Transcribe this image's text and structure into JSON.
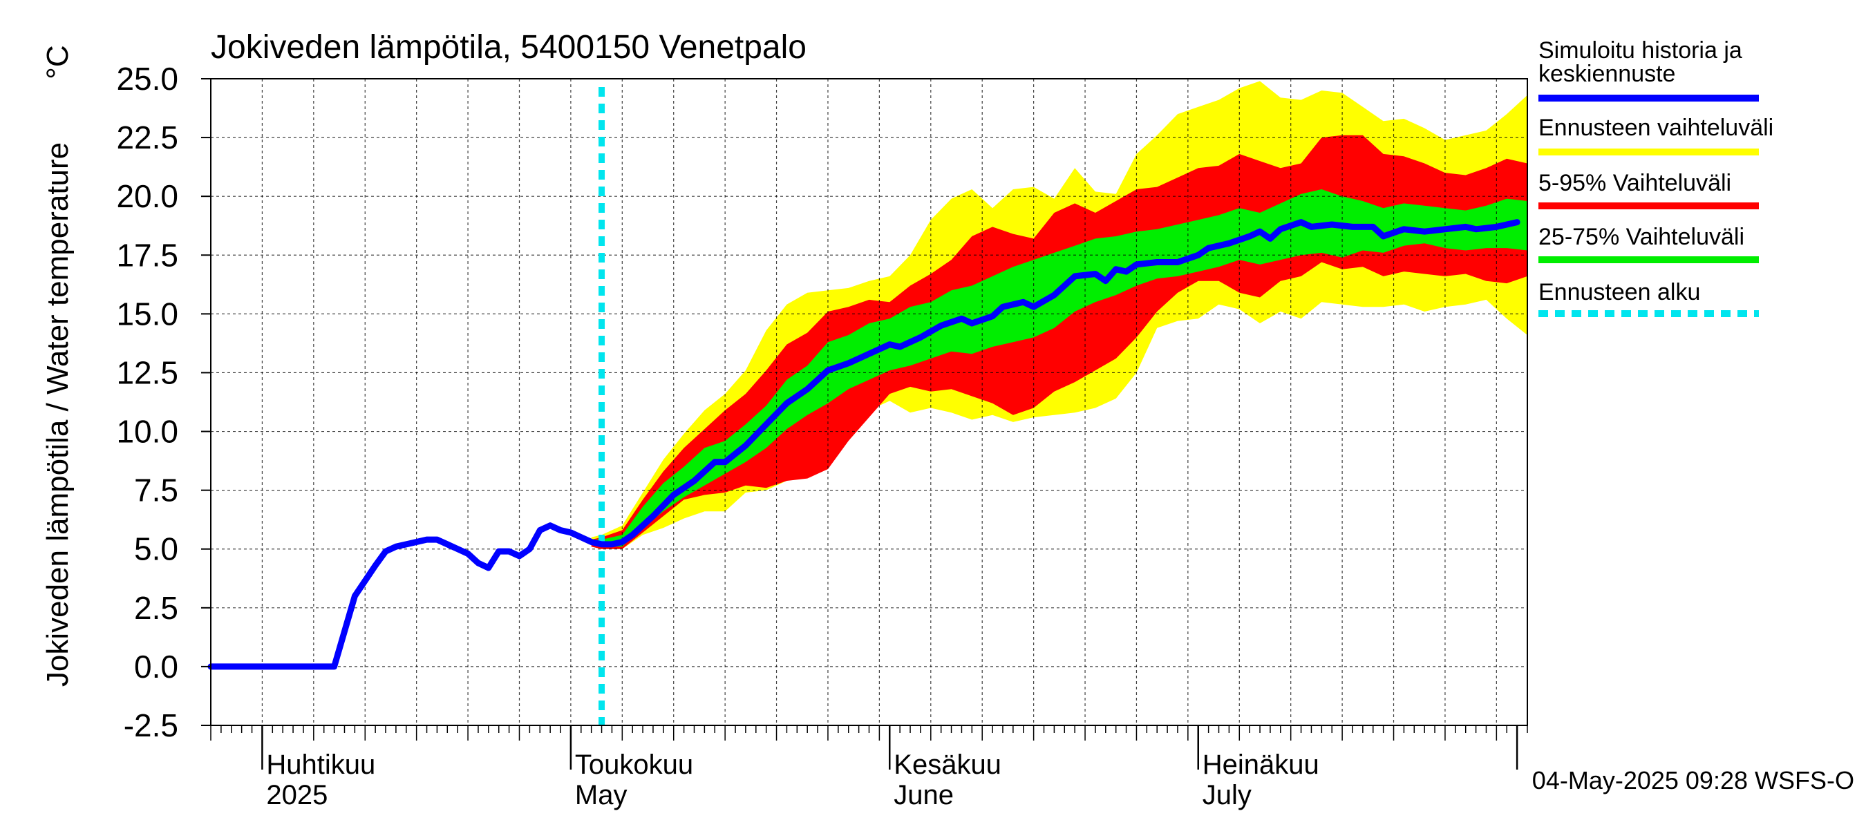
{
  "chart_data": {
    "type": "area",
    "title": "Jokiveden lämpötila, 5400150 Venetpalo",
    "ylabel": "Jokiveden lämpötila / Water temperature",
    "yunit": "°C",
    "ylim": [
      -2.5,
      25.0
    ],
    "yticks": [
      "25.0",
      "22.5",
      "20.0",
      "17.5",
      "15.0",
      "12.5",
      "10.0",
      "7.5",
      "5.0",
      "2.5",
      "0.0",
      "-2.5"
    ],
    "xlim": [
      "2025-03-27",
      "2025-08-02"
    ],
    "month_labels": [
      {
        "date": "2025-04-01",
        "fi": "Huhtikuu",
        "en": "2025"
      },
      {
        "date": "2025-05-01",
        "fi": "Toukokuu",
        "en": "May"
      },
      {
        "date": "2025-06-01",
        "fi": "Kesäkuu",
        "en": "June"
      },
      {
        "date": "2025-07-01",
        "fi": "Heinäkuu",
        "en": "July"
      }
    ],
    "forecast_start": "2025-05-04",
    "grid": true,
    "legend_position": "right",
    "legend": [
      {
        "label": "Simuloitu historia ja keskiennuste",
        "color": "#0000ff"
      },
      {
        "label": "Ennusteen vaihteluväli",
        "color": "#ffff00"
      },
      {
        "label": "5-95% Vaihteluväli",
        "color": "#ff0000"
      },
      {
        "label": "25-75% Vaihteluväli",
        "color": "#00ee00"
      },
      {
        "label": "Ennusteen alku",
        "color": "#00e5ee"
      }
    ],
    "timestamp": "04-May-2025 09:28 WSFS-O",
    "series": [
      {
        "name": "Simuloitu historia ja keskiennuste",
        "color": "#0000ff",
        "points": [
          [
            "2025-03-27",
            0.0
          ],
          [
            "2025-04-08",
            0.0
          ],
          [
            "2025-04-10",
            3.0
          ],
          [
            "2025-04-12",
            4.3
          ],
          [
            "2025-04-13",
            4.9
          ],
          [
            "2025-04-14",
            5.1
          ],
          [
            "2025-04-15",
            5.2
          ],
          [
            "2025-04-16",
            5.3
          ],
          [
            "2025-04-17",
            5.4
          ],
          [
            "2025-04-18",
            5.4
          ],
          [
            "2025-04-19",
            5.2
          ],
          [
            "2025-04-20",
            5.0
          ],
          [
            "2025-04-21",
            4.8
          ],
          [
            "2025-04-22",
            4.4
          ],
          [
            "2025-04-23",
            4.2
          ],
          [
            "2025-04-24",
            4.9
          ],
          [
            "2025-04-25",
            4.9
          ],
          [
            "2025-04-26",
            4.7
          ],
          [
            "2025-04-27",
            5.0
          ],
          [
            "2025-04-28",
            5.8
          ],
          [
            "2025-04-29",
            6.0
          ],
          [
            "2025-04-30",
            5.8
          ],
          [
            "2025-05-01",
            5.7
          ],
          [
            "2025-05-02",
            5.5
          ],
          [
            "2025-05-03",
            5.3
          ],
          [
            "2025-05-04",
            5.2
          ],
          [
            "2025-05-05",
            5.2
          ],
          [
            "2025-05-06",
            5.3
          ],
          [
            "2025-05-07",
            5.6
          ],
          [
            "2025-05-09",
            6.4
          ],
          [
            "2025-05-11",
            7.3
          ],
          [
            "2025-05-13",
            7.9
          ],
          [
            "2025-05-15",
            8.7
          ],
          [
            "2025-05-16",
            8.7
          ],
          [
            "2025-05-18",
            9.4
          ],
          [
            "2025-05-20",
            10.3
          ],
          [
            "2025-05-22",
            11.2
          ],
          [
            "2025-05-24",
            11.8
          ],
          [
            "2025-05-26",
            12.6
          ],
          [
            "2025-05-28",
            12.9
          ],
          [
            "2025-05-30",
            13.3
          ],
          [
            "2025-06-01",
            13.7
          ],
          [
            "2025-06-02",
            13.6
          ],
          [
            "2025-06-04",
            14.0
          ],
          [
            "2025-06-06",
            14.5
          ],
          [
            "2025-06-08",
            14.8
          ],
          [
            "2025-06-09",
            14.6
          ],
          [
            "2025-06-11",
            14.9
          ],
          [
            "2025-06-12",
            15.3
          ],
          [
            "2025-06-14",
            15.5
          ],
          [
            "2025-06-15",
            15.3
          ],
          [
            "2025-06-17",
            15.8
          ],
          [
            "2025-06-19",
            16.6
          ],
          [
            "2025-06-21",
            16.7
          ],
          [
            "2025-06-22",
            16.4
          ],
          [
            "2025-06-23",
            16.9
          ],
          [
            "2025-06-24",
            16.8
          ],
          [
            "2025-06-25",
            17.1
          ],
          [
            "2025-06-27",
            17.2
          ],
          [
            "2025-06-29",
            17.2
          ],
          [
            "2025-07-01",
            17.5
          ],
          [
            "2025-07-02",
            17.8
          ],
          [
            "2025-07-04",
            18.0
          ],
          [
            "2025-07-06",
            18.3
          ],
          [
            "2025-07-07",
            18.5
          ],
          [
            "2025-07-08",
            18.2
          ],
          [
            "2025-07-09",
            18.6
          ],
          [
            "2025-07-11",
            18.9
          ],
          [
            "2025-07-12",
            18.7
          ],
          [
            "2025-07-14",
            18.8
          ],
          [
            "2025-07-16",
            18.7
          ],
          [
            "2025-07-18",
            18.7
          ],
          [
            "2025-07-19",
            18.3
          ],
          [
            "2025-07-21",
            18.6
          ],
          [
            "2025-07-23",
            18.5
          ],
          [
            "2025-07-25",
            18.6
          ],
          [
            "2025-07-27",
            18.7
          ],
          [
            "2025-07-28",
            18.6
          ],
          [
            "2025-07-30",
            18.7
          ],
          [
            "2025-08-01",
            18.9
          ]
        ]
      }
    ],
    "bands": [
      {
        "name": "Ennusteen vaihteluväli",
        "color": "#ffff00",
        "points": [
          [
            "2025-05-03",
            5.1,
            5.5
          ],
          [
            "2025-05-04",
            5.0,
            5.6
          ],
          [
            "2025-05-06",
            5.0,
            6.0
          ],
          [
            "2025-05-08",
            5.6,
            7.4
          ],
          [
            "2025-05-10",
            5.9,
            8.8
          ],
          [
            "2025-05-12",
            6.3,
            9.9
          ],
          [
            "2025-05-14",
            6.6,
            10.9
          ],
          [
            "2025-05-16",
            6.6,
            11.6
          ],
          [
            "2025-05-18",
            7.4,
            12.6
          ],
          [
            "2025-05-20",
            7.5,
            14.3
          ],
          [
            "2025-05-22",
            7.9,
            15.4
          ],
          [
            "2025-05-24",
            8.2,
            15.9
          ],
          [
            "2025-05-26",
            8.9,
            16.0
          ],
          [
            "2025-05-28",
            9.8,
            16.1
          ],
          [
            "2025-05-30",
            10.9,
            16.4
          ],
          [
            "2025-06-01",
            11.3,
            16.6
          ],
          [
            "2025-06-03",
            10.8,
            17.5
          ],
          [
            "2025-06-05",
            11.0,
            19.0
          ],
          [
            "2025-06-07",
            10.8,
            19.9
          ],
          [
            "2025-06-09",
            10.5,
            20.3
          ],
          [
            "2025-06-11",
            10.7,
            19.5
          ],
          [
            "2025-06-13",
            10.4,
            20.3
          ],
          [
            "2025-06-15",
            10.6,
            20.4
          ],
          [
            "2025-06-17",
            10.7,
            19.9
          ],
          [
            "2025-06-19",
            10.8,
            21.2
          ],
          [
            "2025-06-21",
            11.0,
            20.2
          ],
          [
            "2025-06-23",
            11.4,
            20.1
          ],
          [
            "2025-06-25",
            12.5,
            21.8
          ],
          [
            "2025-06-27",
            14.4,
            22.6
          ],
          [
            "2025-06-29",
            14.7,
            23.5
          ],
          [
            "2025-07-01",
            14.8,
            23.8
          ],
          [
            "2025-07-03",
            15.4,
            24.1
          ],
          [
            "2025-07-05",
            15.2,
            24.6
          ],
          [
            "2025-07-07",
            14.6,
            24.9
          ],
          [
            "2025-07-09",
            15.1,
            24.2
          ],
          [
            "2025-07-11",
            14.8,
            24.1
          ],
          [
            "2025-07-13",
            15.5,
            24.5
          ],
          [
            "2025-07-15",
            15.4,
            24.4
          ],
          [
            "2025-07-17",
            15.3,
            23.8
          ],
          [
            "2025-07-19",
            15.3,
            23.2
          ],
          [
            "2025-07-21",
            15.4,
            23.3
          ],
          [
            "2025-07-23",
            15.1,
            22.9
          ],
          [
            "2025-07-25",
            15.3,
            22.4
          ],
          [
            "2025-07-27",
            15.4,
            22.6
          ],
          [
            "2025-07-29",
            15.6,
            22.8
          ],
          [
            "2025-07-31",
            14.8,
            23.5
          ],
          [
            "2025-08-02",
            14.1,
            24.3
          ]
        ]
      },
      {
        "name": "5-95% Vaihteluväli",
        "color": "#ff0000",
        "points": [
          [
            "2025-05-03",
            5.1,
            5.4
          ],
          [
            "2025-05-04",
            5.0,
            5.5
          ],
          [
            "2025-05-06",
            5.0,
            5.8
          ],
          [
            "2025-05-08",
            5.7,
            7.1
          ],
          [
            "2025-05-10",
            6.4,
            8.3
          ],
          [
            "2025-05-12",
            7.1,
            9.3
          ],
          [
            "2025-05-14",
            7.3,
            10.1
          ],
          [
            "2025-05-16",
            7.4,
            10.9
          ],
          [
            "2025-05-18",
            7.7,
            11.6
          ],
          [
            "2025-05-20",
            7.6,
            12.6
          ],
          [
            "2025-05-22",
            7.9,
            13.7
          ],
          [
            "2025-05-24",
            8.0,
            14.2
          ],
          [
            "2025-05-26",
            8.4,
            15.1
          ],
          [
            "2025-05-28",
            9.6,
            15.3
          ],
          [
            "2025-05-30",
            10.6,
            15.6
          ],
          [
            "2025-06-01",
            11.6,
            15.5
          ],
          [
            "2025-06-03",
            11.9,
            16.2
          ],
          [
            "2025-06-05",
            11.7,
            16.7
          ],
          [
            "2025-06-07",
            11.8,
            17.3
          ],
          [
            "2025-06-09",
            11.5,
            18.3
          ],
          [
            "2025-06-11",
            11.2,
            18.7
          ],
          [
            "2025-06-13",
            10.7,
            18.4
          ],
          [
            "2025-06-15",
            11.0,
            18.2
          ],
          [
            "2025-06-17",
            11.7,
            19.3
          ],
          [
            "2025-06-19",
            12.1,
            19.7
          ],
          [
            "2025-06-21",
            12.6,
            19.3
          ],
          [
            "2025-06-23",
            13.1,
            19.8
          ],
          [
            "2025-06-25",
            14.0,
            20.3
          ],
          [
            "2025-06-27",
            15.1,
            20.4
          ],
          [
            "2025-06-29",
            15.9,
            20.8
          ],
          [
            "2025-07-01",
            16.4,
            21.2
          ],
          [
            "2025-07-03",
            16.4,
            21.3
          ],
          [
            "2025-07-05",
            15.9,
            21.8
          ],
          [
            "2025-07-07",
            15.7,
            21.5
          ],
          [
            "2025-07-09",
            16.4,
            21.2
          ],
          [
            "2025-07-11",
            16.6,
            21.4
          ],
          [
            "2025-07-13",
            17.2,
            22.5
          ],
          [
            "2025-07-15",
            16.9,
            22.6
          ],
          [
            "2025-07-17",
            17.0,
            22.6
          ],
          [
            "2025-07-19",
            16.6,
            21.8
          ],
          [
            "2025-07-21",
            16.8,
            21.7
          ],
          [
            "2025-07-23",
            16.7,
            21.4
          ],
          [
            "2025-07-25",
            16.6,
            21.0
          ],
          [
            "2025-07-27",
            16.7,
            20.9
          ],
          [
            "2025-07-29",
            16.4,
            21.2
          ],
          [
            "2025-07-31",
            16.3,
            21.6
          ],
          [
            "2025-08-02",
            16.6,
            21.4
          ]
        ]
      },
      {
        "name": "25-75% Vaihteluväli",
        "color": "#00ee00",
        "points": [
          [
            "2025-05-03",
            5.2,
            5.4
          ],
          [
            "2025-05-04",
            5.1,
            5.4
          ],
          [
            "2025-05-06",
            5.1,
            5.6
          ],
          [
            "2025-05-08",
            5.9,
            6.8
          ],
          [
            "2025-05-10",
            6.6,
            7.8
          ],
          [
            "2025-05-12",
            7.2,
            8.5
          ],
          [
            "2025-05-14",
            7.7,
            9.3
          ],
          [
            "2025-05-16",
            8.2,
            9.6
          ],
          [
            "2025-05-18",
            8.7,
            10.3
          ],
          [
            "2025-05-20",
            9.3,
            11.1
          ],
          [
            "2025-05-22",
            10.1,
            12.2
          ],
          [
            "2025-05-24",
            10.7,
            12.8
          ],
          [
            "2025-05-26",
            11.2,
            13.8
          ],
          [
            "2025-05-28",
            11.8,
            14.1
          ],
          [
            "2025-05-30",
            12.2,
            14.6
          ],
          [
            "2025-06-01",
            12.6,
            14.8
          ],
          [
            "2025-06-03",
            12.8,
            15.3
          ],
          [
            "2025-06-05",
            13.1,
            15.5
          ],
          [
            "2025-06-07",
            13.4,
            16.0
          ],
          [
            "2025-06-09",
            13.3,
            16.2
          ],
          [
            "2025-06-11",
            13.6,
            16.6
          ],
          [
            "2025-06-13",
            13.8,
            17.0
          ],
          [
            "2025-06-15",
            14.0,
            17.3
          ],
          [
            "2025-06-17",
            14.4,
            17.6
          ],
          [
            "2025-06-19",
            15.1,
            17.9
          ],
          [
            "2025-06-21",
            15.5,
            18.2
          ],
          [
            "2025-06-23",
            15.8,
            18.3
          ],
          [
            "2025-06-25",
            16.2,
            18.5
          ],
          [
            "2025-06-27",
            16.5,
            18.6
          ],
          [
            "2025-06-29",
            16.6,
            18.8
          ],
          [
            "2025-07-01",
            16.8,
            19.0
          ],
          [
            "2025-07-03",
            17.0,
            19.2
          ],
          [
            "2025-07-05",
            17.3,
            19.5
          ],
          [
            "2025-07-07",
            17.1,
            19.3
          ],
          [
            "2025-07-09",
            17.3,
            19.7
          ],
          [
            "2025-07-11",
            17.5,
            20.1
          ],
          [
            "2025-07-13",
            17.6,
            20.3
          ],
          [
            "2025-07-15",
            17.4,
            20.0
          ],
          [
            "2025-07-17",
            17.7,
            19.8
          ],
          [
            "2025-07-19",
            17.6,
            19.5
          ],
          [
            "2025-07-21",
            17.9,
            19.7
          ],
          [
            "2025-07-23",
            18.0,
            19.6
          ],
          [
            "2025-07-25",
            17.8,
            19.5
          ],
          [
            "2025-07-27",
            17.7,
            19.4
          ],
          [
            "2025-07-29",
            17.8,
            19.6
          ],
          [
            "2025-07-31",
            17.8,
            19.9
          ],
          [
            "2025-08-02",
            17.7,
            19.8
          ]
        ]
      }
    ]
  }
}
